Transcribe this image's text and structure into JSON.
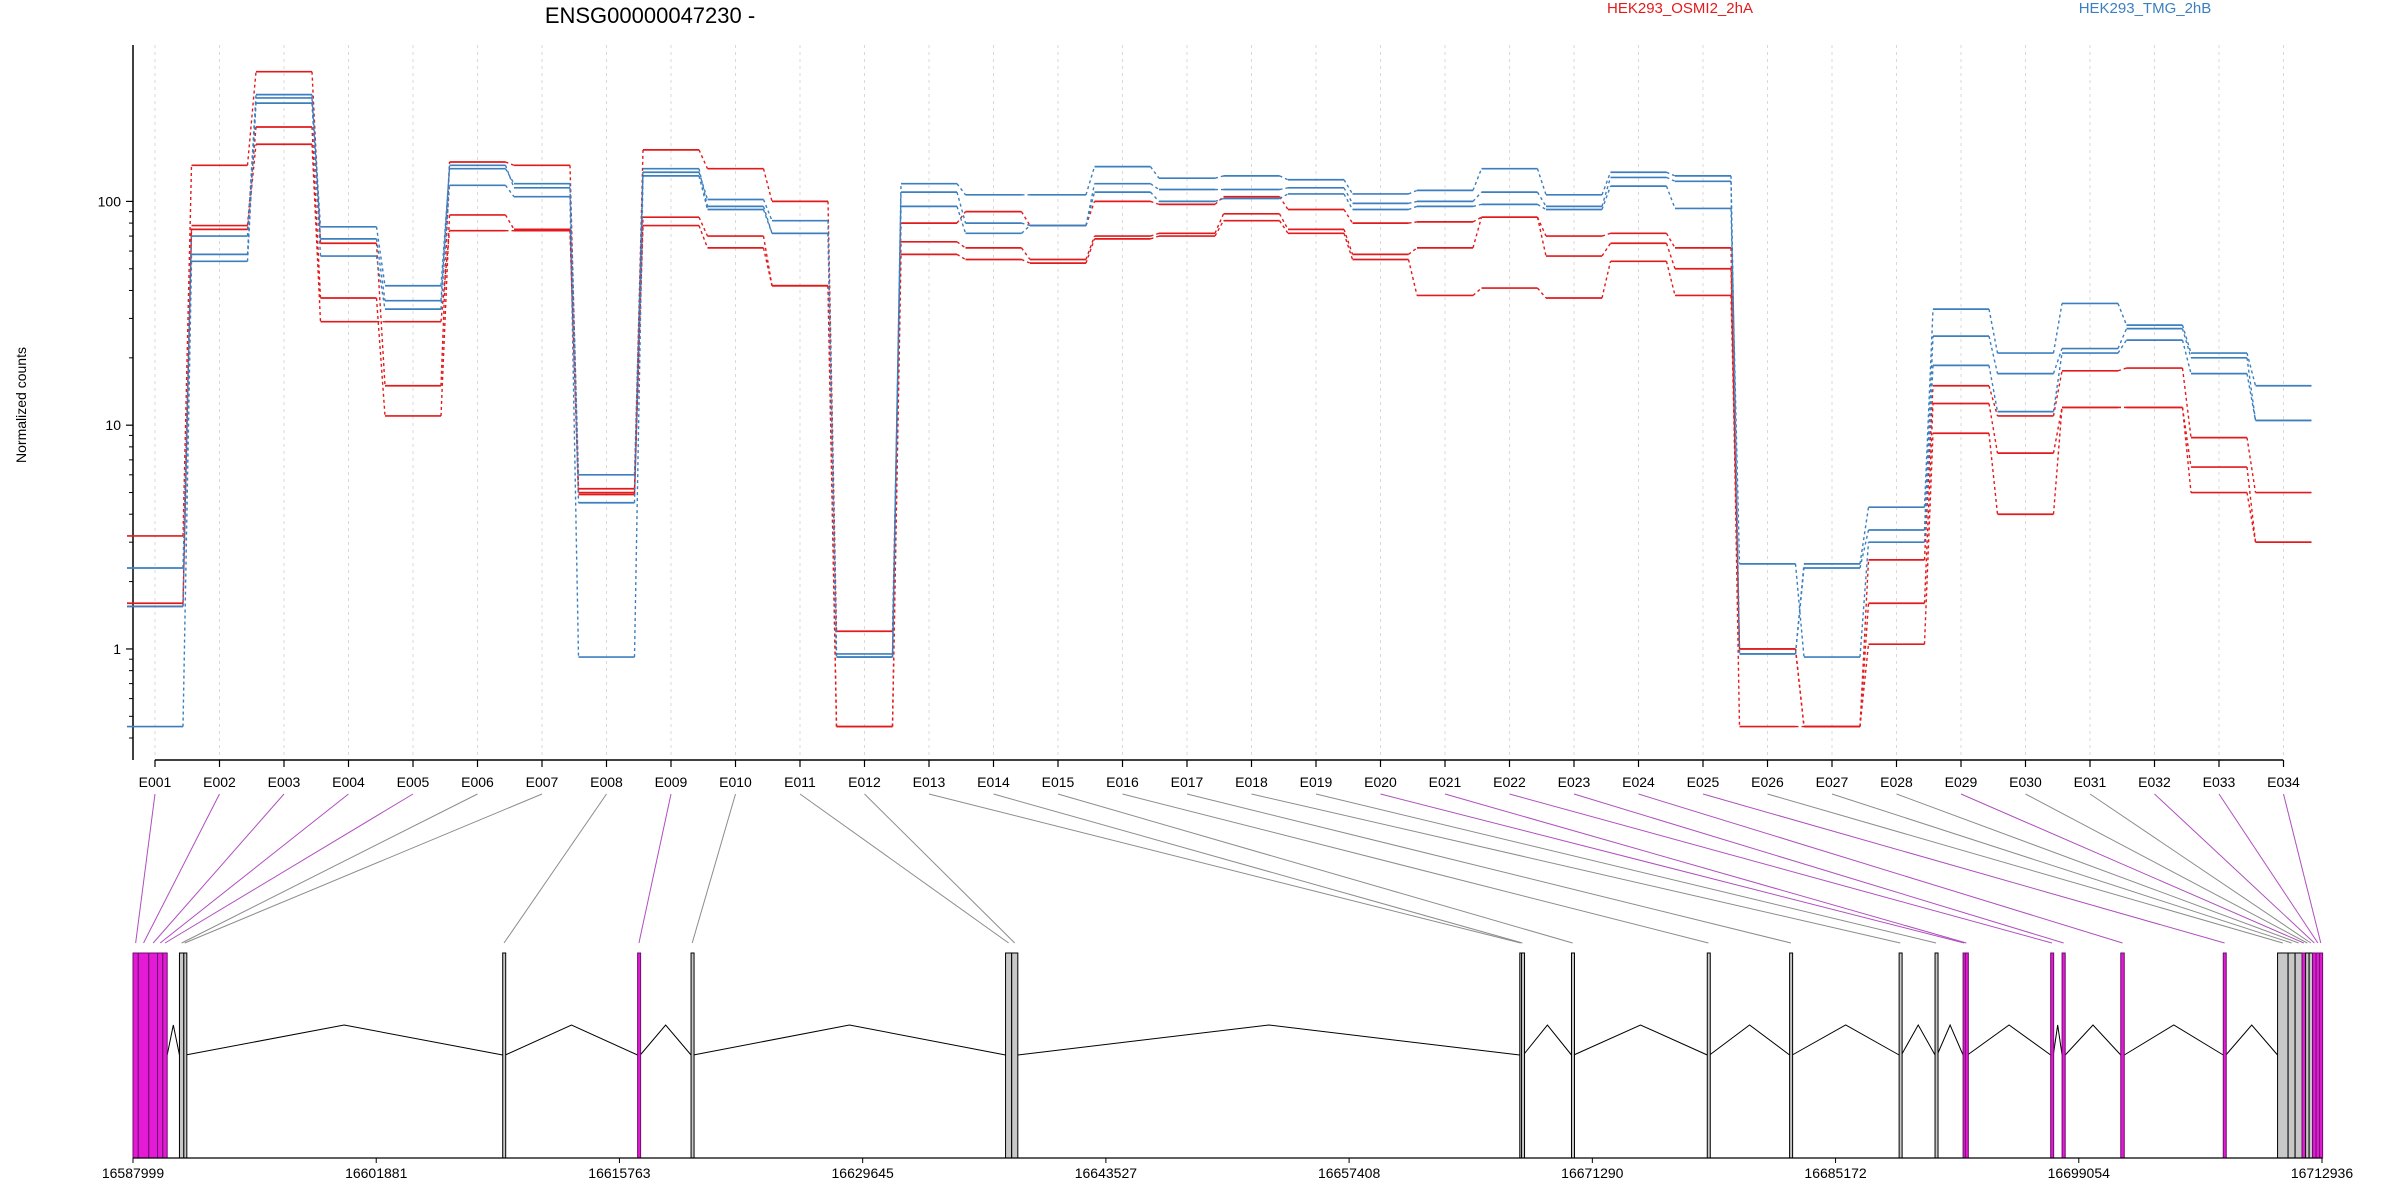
{
  "chart_data": {
    "type": "line",
    "title": "ENSG00000047230 -",
    "ylabel": "Normalized counts",
    "yscale": "log",
    "ylim": [
      0.4,
      500
    ],
    "yticks": [
      1,
      10,
      100
    ],
    "ytick_labels": [
      "1",
      "10",
      "100"
    ],
    "categories": [
      "E001",
      "E002",
      "E003",
      "E004",
      "E005",
      "E006",
      "E007",
      "E008",
      "E009",
      "E010",
      "E011",
      "E012",
      "E013",
      "E014",
      "E015",
      "E016",
      "E017",
      "E018",
      "E019",
      "E020",
      "E021",
      "E022",
      "E023",
      "E024",
      "E025",
      "E026",
      "E027",
      "E028",
      "E029",
      "E030",
      "E031",
      "E032",
      "E033",
      "E034"
    ],
    "legend": [
      {
        "label": "HEK293_OSMI2_2hA",
        "color": "#e31a1c"
      },
      {
        "label": "HEK293_TMG_2hB",
        "color": "#3b7fbf"
      }
    ],
    "series": [
      {
        "group": "HEK293_OSMI2_2hA",
        "color": "#e31a1c",
        "values": [
          3.2,
          145,
          380,
          65,
          15,
          150,
          145,
          5.2,
          170,
          140,
          100,
          1.2,
          80,
          90,
          78,
          100,
          97,
          105,
          92,
          80,
          81,
          85,
          70,
          72,
          62,
          0.45,
          0.45,
          2.5,
          15,
          11,
          17.5,
          18,
          8.8,
          5
        ]
      },
      {
        "group": "HEK293_OSMI2_2hA",
        "color": "#e31a1c",
        "values": [
          1.6,
          78,
          215,
          37,
          11,
          87,
          75,
          5,
          85,
          70,
          42,
          0.45,
          66,
          62,
          55,
          70,
          72,
          88,
          75,
          58,
          62,
          85,
          57,
          65,
          50,
          1,
          0.45,
          1.6,
          12.5,
          7.5,
          12,
          12,
          6.5,
          3
        ]
      },
      {
        "group": "HEK293_OSMI2_2hA",
        "color": "#e31a1c",
        "values": [
          1.55,
          75,
          180,
          29,
          29,
          74,
          74,
          4.9,
          78,
          62,
          42,
          0.45,
          58,
          55,
          53,
          68,
          70,
          82,
          72,
          55,
          38,
          41,
          37,
          54,
          38,
          1,
          0.45,
          1.05,
          9.2,
          4,
          12,
          12,
          5,
          3
        ]
      },
      {
        "group": "HEK293_TMG_2hB",
        "color": "#3b7fbf",
        "values": [
          2.3,
          70,
          300,
          77,
          42,
          140,
          120,
          4.5,
          135,
          102,
          82,
          0.92,
          120,
          107,
          107,
          143,
          127,
          130,
          125,
          108,
          112,
          140,
          107,
          135,
          130,
          0.95,
          2.4,
          4.3,
          33,
          21,
          35,
          28,
          21,
          15
        ]
      },
      {
        "group": "HEK293_TMG_2hB",
        "color": "#3b7fbf",
        "values": [
          1.55,
          58,
          290,
          68,
          36,
          145,
          115,
          6,
          140,
          95,
          72,
          0.95,
          110,
          80,
          78,
          120,
          113,
          113,
          115,
          98,
          100,
          110,
          95,
          128,
          123,
          0.95,
          2.3,
          3.4,
          25,
          17,
          22,
          27,
          20,
          10.5
        ]
      },
      {
        "group": "HEK293_TMG_2hB",
        "color": "#3b7fbf",
        "values": [
          0.45,
          54,
          275,
          57,
          33,
          118,
          105,
          0.92,
          130,
          92,
          72,
          0.92,
          95,
          72,
          78,
          110,
          100,
          103,
          108,
          92,
          95,
          97,
          92,
          117,
          93,
          2.4,
          0.92,
          3,
          18.5,
          11.5,
          21,
          24,
          17,
          10.5
        ]
      }
    ],
    "gene_axis": {
      "start": 16587999,
      "end": 16712936,
      "tick_labels": [
        "16587999",
        "16601881",
        "16615763",
        "16629645",
        "16643527",
        "16657408",
        "16671290",
        "16685172",
        "16699054",
        "16712936"
      ],
      "exons": [
        {
          "id": "E001",
          "start": 16587999,
          "end": 16588300,
          "highlight": true
        },
        {
          "id": "E002",
          "start": 16588300,
          "end": 16588900,
          "highlight": true
        },
        {
          "id": "E003",
          "start": 16588900,
          "end": 16589400,
          "highlight": true
        },
        {
          "id": "E004",
          "start": 16589400,
          "end": 16589700,
          "highlight": true
        },
        {
          "id": "E005",
          "start": 16589700,
          "end": 16589950,
          "highlight": true
        },
        {
          "id": "E006",
          "start": 16590650,
          "end": 16590900,
          "highlight": false
        },
        {
          "id": "E007",
          "start": 16590900,
          "end": 16591000,
          "highlight": false
        },
        {
          "id": "E008",
          "start": 16609100,
          "end": 16609250,
          "highlight": false
        },
        {
          "id": "E009",
          "start": 16616800,
          "end": 16616950,
          "highlight": true
        },
        {
          "id": "E010",
          "start": 16619850,
          "end": 16619980,
          "highlight": false
        },
        {
          "id": "E011",
          "start": 16637800,
          "end": 16638150,
          "highlight": false
        },
        {
          "id": "E012",
          "start": 16638150,
          "end": 16638500,
          "highlight": false
        },
        {
          "id": "E013",
          "start": 16667150,
          "end": 16667250,
          "highlight": false
        },
        {
          "id": "E014",
          "start": 16667250,
          "end": 16667350,
          "highlight": false
        },
        {
          "id": "E015",
          "start": 16670100,
          "end": 16670230,
          "highlight": false
        },
        {
          "id": "E016",
          "start": 16677850,
          "end": 16677980,
          "highlight": false
        },
        {
          "id": "E017",
          "start": 16682550,
          "end": 16682700,
          "highlight": false
        },
        {
          "id": "E018",
          "start": 16688800,
          "end": 16688930,
          "highlight": false
        },
        {
          "id": "E019",
          "start": 16690850,
          "end": 16690970,
          "highlight": false
        },
        {
          "id": "E020",
          "start": 16692450,
          "end": 16692580,
          "highlight": true
        },
        {
          "id": "E021",
          "start": 16692580,
          "end": 16692700,
          "highlight": true
        },
        {
          "id": "E022",
          "start": 16697450,
          "end": 16697600,
          "highlight": true
        },
        {
          "id": "E023",
          "start": 16698100,
          "end": 16698280,
          "highlight": true
        },
        {
          "id": "E024",
          "start": 16701450,
          "end": 16701650,
          "highlight": true
        },
        {
          "id": "E025",
          "start": 16707300,
          "end": 16707450,
          "highlight": true
        },
        {
          "id": "E026",
          "start": 16710400,
          "end": 16711000,
          "highlight": false
        },
        {
          "id": "E027",
          "start": 16711000,
          "end": 16711400,
          "highlight": false
        },
        {
          "id": "E028",
          "start": 16711400,
          "end": 16711800,
          "highlight": false
        },
        {
          "id": "E029",
          "start": 16711800,
          "end": 16712000,
          "highlight": true
        },
        {
          "id": "E030",
          "start": 16712000,
          "end": 16712200,
          "highlight": false
        },
        {
          "id": "E031",
          "start": 16712200,
          "end": 16712400,
          "highlight": false
        },
        {
          "id": "E032",
          "start": 16712400,
          "end": 16712600,
          "highlight": true
        },
        {
          "id": "E033",
          "start": 16712600,
          "end": 16712800,
          "highlight": true
        },
        {
          "id": "E034",
          "start": 16712800,
          "end": 16712936,
          "highlight": true
        }
      ]
    }
  }
}
